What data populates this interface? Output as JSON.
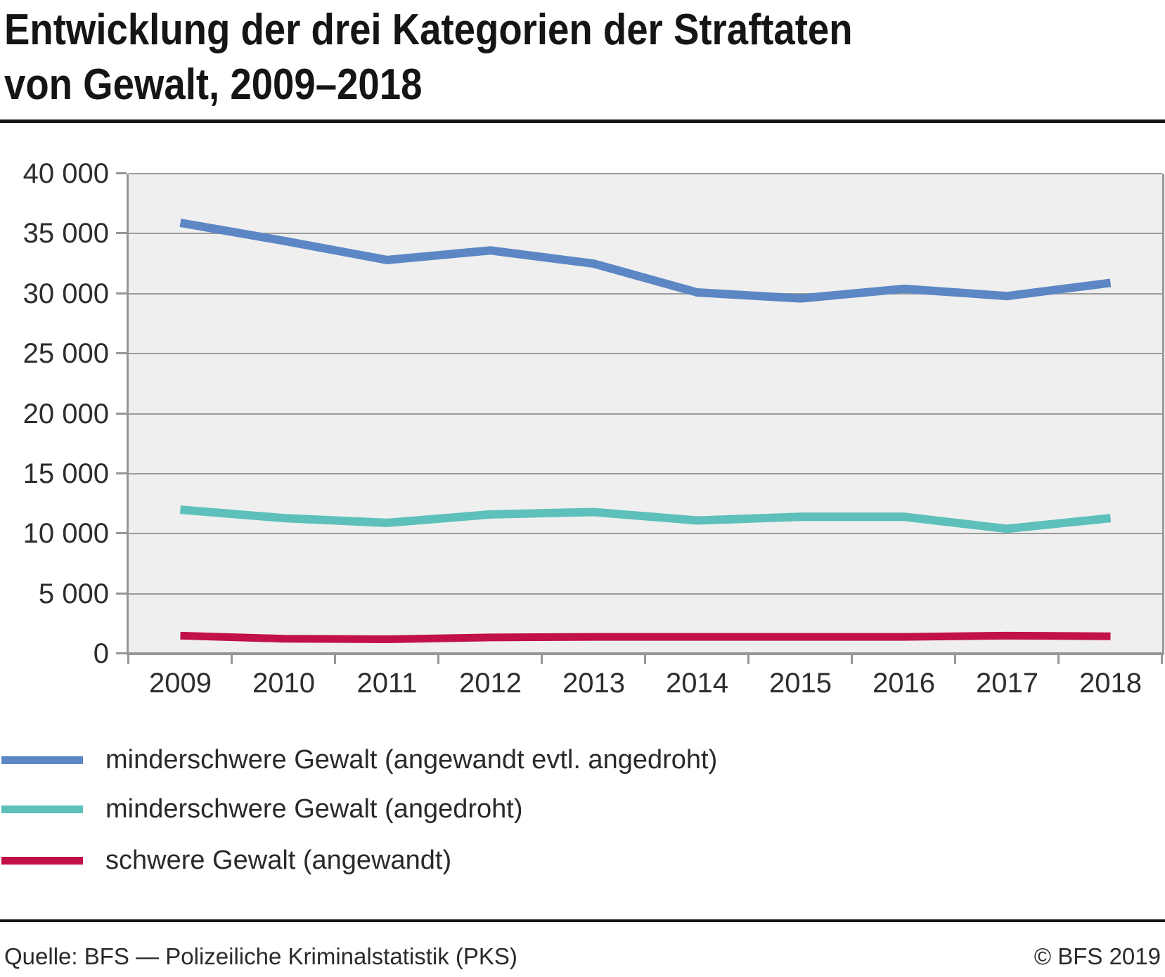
{
  "page": {
    "title_line1": "Entwicklung der drei Kategorien der Straftaten",
    "title_line2": "von Gewalt, 2009–2018",
    "source": "Quelle: BFS — Polizeiliche Kriminalstatistik (PKS)",
    "copyright": "© BFS 2019"
  },
  "colors": {
    "blue": "#5C87C4",
    "teal": "#5EC0BA",
    "red": "#C21049",
    "plot_bg": "#EFEFEF",
    "gridline": "#9B9B9B",
    "axis": "#979797",
    "text": "#2D2D2D",
    "title_text": "#151515"
  },
  "chart_data": {
    "type": "line",
    "title": "Entwicklung der drei Kategorien der Straftaten von Gewalt, 2009–2018",
    "x": [
      "2009",
      "2010",
      "2011",
      "2012",
      "2013",
      "2014",
      "2015",
      "2016",
      "2017",
      "2018"
    ],
    "series": [
      {
        "name": "minderschwere Gewalt (angewandt evtl. angedroht)",
        "color": "#5C87C4",
        "values": [
          35900,
          34400,
          32800,
          33600,
          32500,
          30100,
          29600,
          30400,
          29800,
          30900
        ]
      },
      {
        "name": "minderschwere Gewalt (angedroht)",
        "color": "#5EC0BA",
        "values": [
          12000,
          11300,
          10900,
          11600,
          11800,
          11100,
          11400,
          11400,
          10400,
          11300
        ]
      },
      {
        "name": "schwere Gewalt (angewandt)",
        "color": "#C21049",
        "values": [
          1500,
          1250,
          1200,
          1350,
          1400,
          1400,
          1400,
          1400,
          1500,
          1450
        ]
      }
    ],
    "ylim": [
      0,
      40000
    ],
    "ytick_step": 5000,
    "ytick_labels": [
      "0",
      "5 000",
      "10 000",
      "15 000",
      "20 000",
      "25 000",
      "30 000",
      "35 000",
      "40 000"
    ],
    "grid": true,
    "legend_position": "bottom-left"
  }
}
